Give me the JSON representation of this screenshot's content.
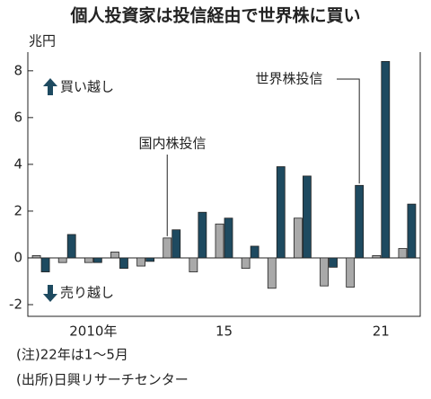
{
  "chart_data": {
    "type": "bar",
    "title": "個人投資家は投信経由で世界株に買い",
    "unit": "兆円",
    "categories": [
      null,
      null,
      "2010年",
      null,
      null,
      null,
      null,
      "15",
      null,
      null,
      null,
      null,
      null,
      "21",
      null
    ],
    "series": [
      {
        "name": "国内株投信",
        "color": "#a9a9a9",
        "values": [
          0.1,
          -0.2,
          -0.2,
          0.25,
          -0.35,
          0.85,
          -0.6,
          1.45,
          -0.45,
          -1.3,
          1.7,
          -1.2,
          -1.25,
          0.1,
          0.4
        ]
      },
      {
        "name": "世界株投信",
        "color": "#1e4a60",
        "values": [
          -0.6,
          1.0,
          -0.2,
          -0.45,
          -0.15,
          1.2,
          1.95,
          1.7,
          0.5,
          3.9,
          3.5,
          -0.4,
          3.1,
          8.4,
          2.3
        ]
      }
    ],
    "ylim": [
      -2.5,
      8.8
    ],
    "yticks": [
      -2,
      0,
      2,
      4,
      6,
      8
    ],
    "annotations": [
      "買い越し",
      "売り越し"
    ],
    "notes": [
      "(注)22年は1～5月",
      "(出所)日興リサーチセンター"
    ]
  }
}
